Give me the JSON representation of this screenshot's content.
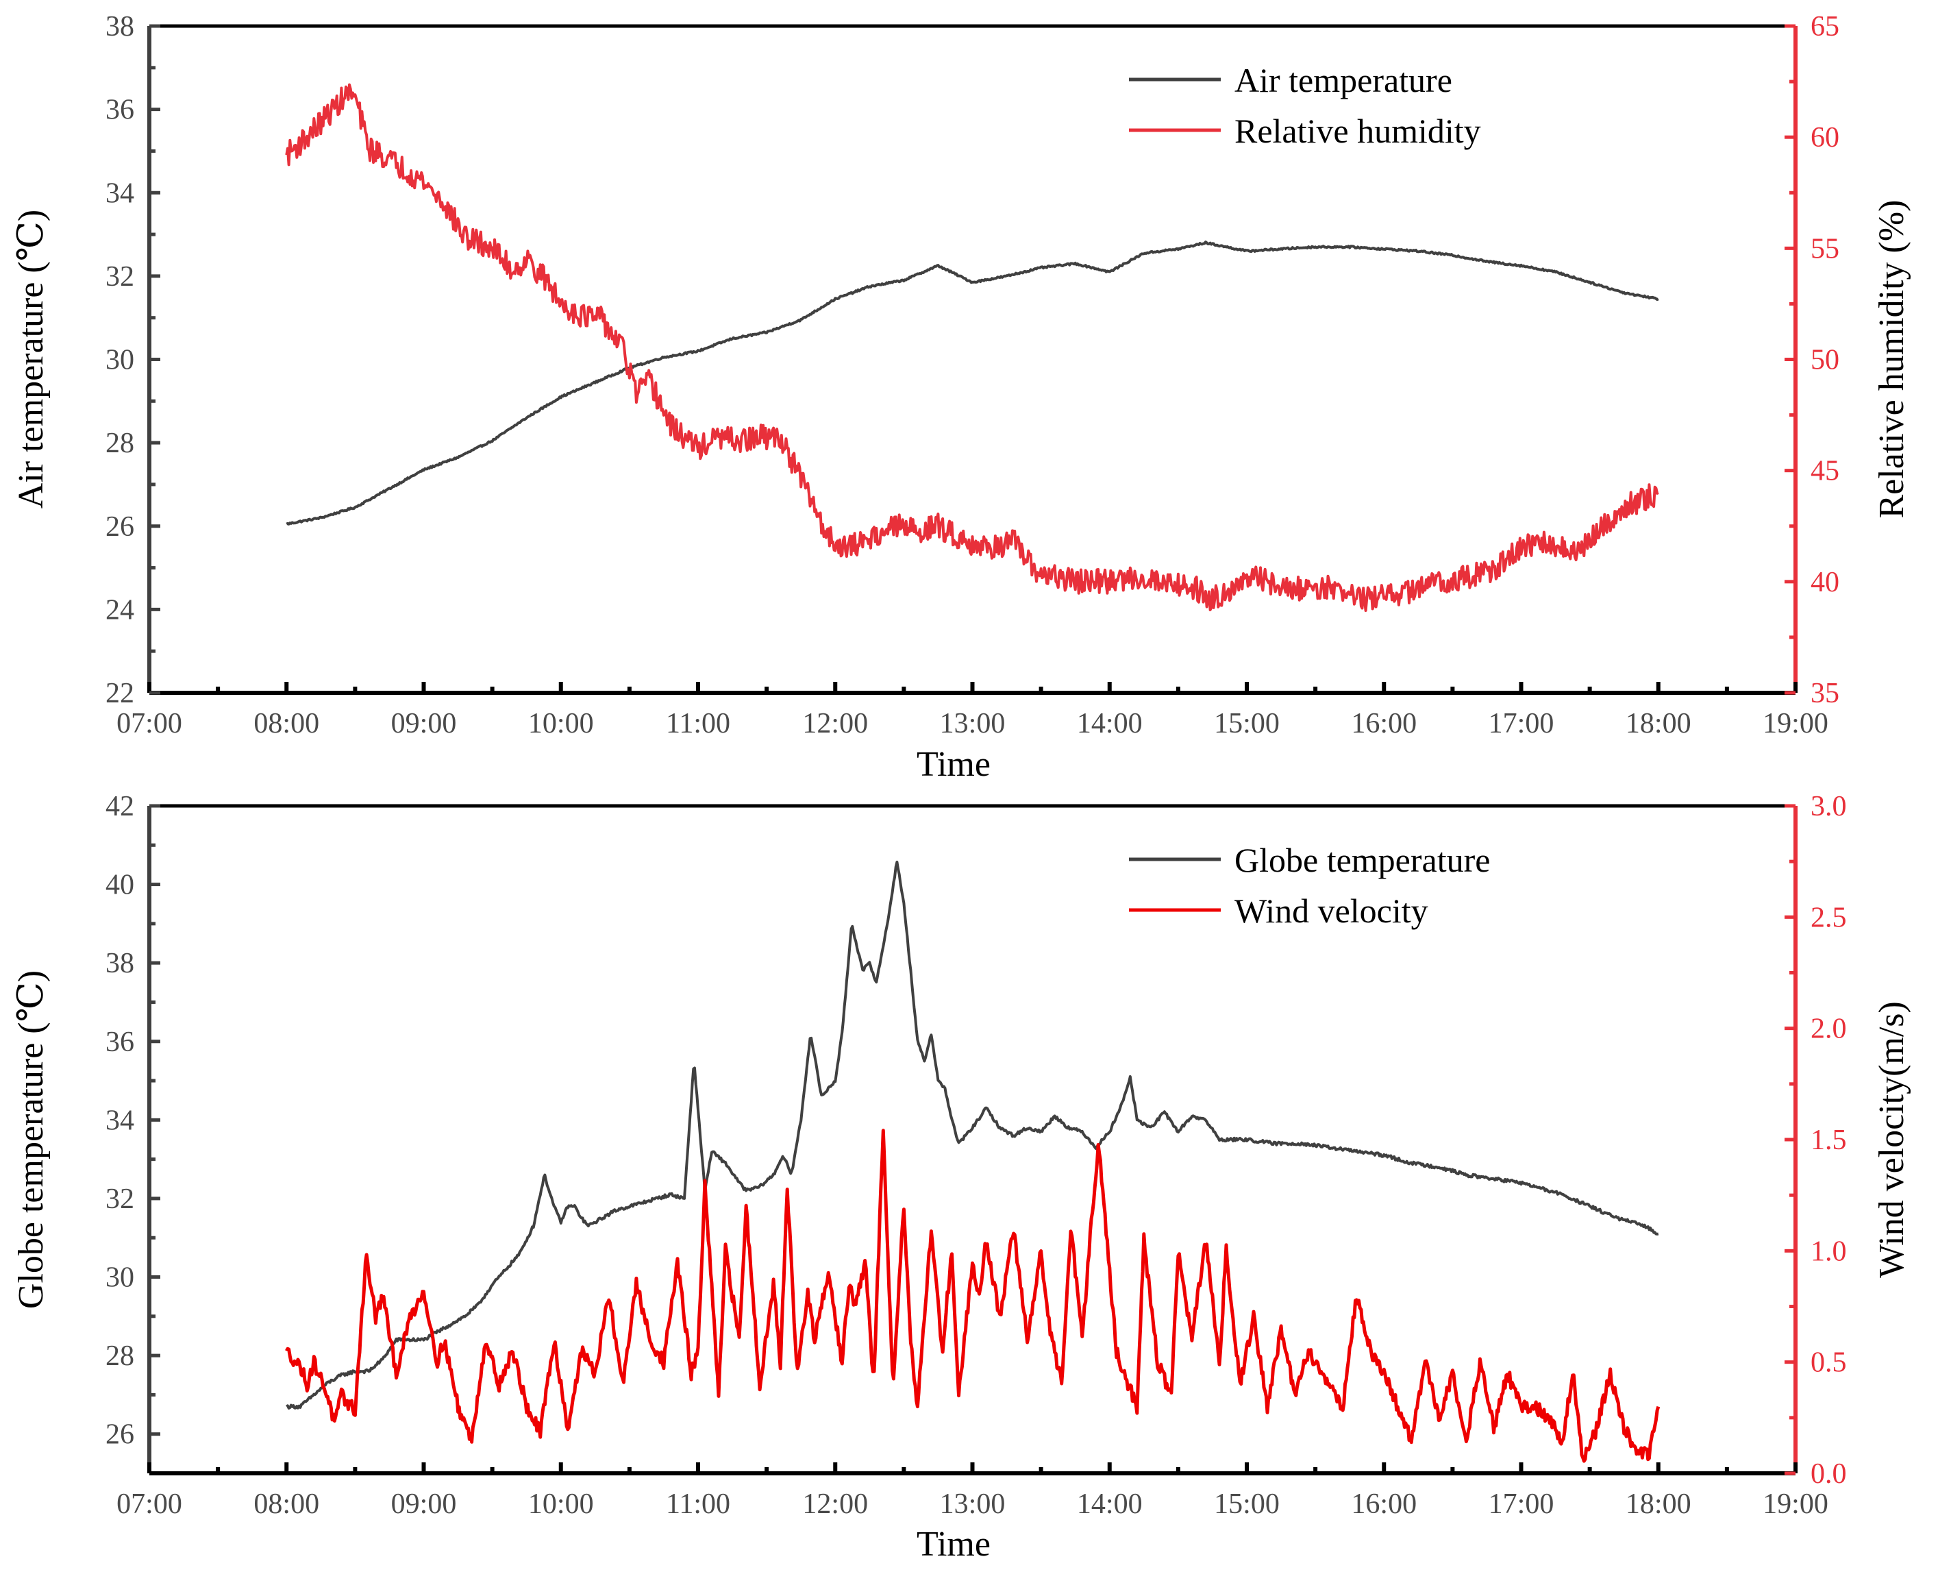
{
  "colors": {
    "primary": "#404040",
    "secondary": "#e8303a",
    "secondary_wind": "#ee0000",
    "axis": "#000000"
  },
  "chart_data": [
    {
      "id": "top",
      "type": "line",
      "xlabel": "Time",
      "ylabel": "Air temperature (℃)",
      "y2label": "Relative humidity (%)",
      "xlim": [
        7,
        19
      ],
      "xticks": [
        "07:00",
        "08:00",
        "09:00",
        "10:00",
        "11:00",
        "12:00",
        "13:00",
        "14:00",
        "15:00",
        "16:00",
        "17:00",
        "18:00",
        "19:00"
      ],
      "ylim": [
        22,
        38
      ],
      "yticks": [
        "22",
        "24",
        "26",
        "28",
        "30",
        "32",
        "34",
        "36",
        "38"
      ],
      "y2lim": [
        35,
        65
      ],
      "y2ticks": [
        "35",
        "40",
        "45",
        "50",
        "55",
        "60",
        "65"
      ],
      "legend_position": "top-right",
      "series": [
        {
          "name": "Air temperature",
          "axis": "left",
          "color": "#404040",
          "noise": 0.02,
          "x": [
            8.0,
            8.25,
            8.5,
            8.75,
            9.0,
            9.25,
            9.5,
            9.75,
            10.0,
            10.25,
            10.5,
            10.75,
            11.0,
            11.25,
            11.5,
            11.75,
            12.0,
            12.25,
            12.5,
            12.75,
            13.0,
            13.25,
            13.5,
            13.75,
            14.0,
            14.25,
            14.5,
            14.7,
            15.0,
            15.25,
            15.5,
            15.75,
            16.0,
            16.25,
            16.5,
            16.75,
            17.0,
            17.25,
            17.5,
            17.75,
            18.0
          ],
          "y": [
            26.05,
            26.2,
            26.45,
            26.9,
            27.35,
            27.65,
            28.05,
            28.6,
            29.1,
            29.45,
            29.8,
            30.05,
            30.2,
            30.5,
            30.65,
            30.95,
            31.45,
            31.75,
            31.9,
            32.25,
            31.85,
            32.0,
            32.2,
            32.3,
            32.1,
            32.55,
            32.65,
            32.8,
            32.6,
            32.65,
            32.7,
            32.7,
            32.65,
            32.6,
            32.5,
            32.35,
            32.25,
            32.1,
            31.85,
            31.6,
            31.45
          ]
        },
        {
          "name": "Relative humidity",
          "axis": "right",
          "color": "#e8303a",
          "noise": 0.55,
          "x": [
            8.0,
            8.15,
            8.3,
            8.45,
            8.5,
            8.6,
            8.75,
            9.0,
            9.15,
            9.3,
            9.5,
            9.65,
            9.75,
            9.9,
            10.0,
            10.15,
            10.3,
            10.45,
            10.55,
            10.65,
            10.8,
            11.0,
            11.15,
            11.3,
            11.45,
            11.6,
            11.8,
            11.95,
            12.1,
            12.25,
            12.45,
            12.6,
            12.75,
            12.9,
            13.1,
            13.3,
            13.45,
            13.6,
            13.8,
            14.0,
            14.2,
            14.4,
            14.6,
            14.75,
            14.9,
            15.1,
            15.3,
            15.5,
            15.7,
            15.85,
            16.0,
            16.2,
            16.4,
            16.6,
            16.8,
            17.0,
            17.2,
            17.4,
            17.6,
            17.8,
            18.0
          ],
          "y": [
            59.2,
            60.0,
            61.0,
            62.0,
            61.8,
            59.5,
            59.0,
            58.0,
            57.0,
            55.5,
            55.0,
            54.0,
            54.5,
            53.5,
            52.5,
            52.0,
            51.8,
            50.5,
            48.5,
            49.0,
            47.0,
            46.0,
            46.5,
            46.3,
            46.5,
            46.5,
            44.0,
            42.0,
            41.5,
            42.0,
            42.5,
            42.3,
            42.5,
            42.0,
            41.5,
            41.8,
            40.5,
            40.2,
            40.0,
            40.0,
            40.2,
            40.0,
            39.8,
            39.2,
            39.8,
            40.2,
            39.6,
            39.8,
            39.6,
            39.2,
            39.3,
            39.6,
            40.0,
            40.2,
            40.5,
            41.5,
            41.8,
            41.2,
            42.5,
            43.5,
            44.0
          ]
        }
      ]
    },
    {
      "id": "bottom",
      "type": "line",
      "xlabel": "Time",
      "ylabel": "Globe temperature (℃)",
      "y2label": "Wind velocity(m/s)",
      "xlim": [
        7,
        19
      ],
      "xticks": [
        "07:00",
        "08:00",
        "09:00",
        "10:00",
        "11:00",
        "12:00",
        "13:00",
        "14:00",
        "15:00",
        "16:00",
        "17:00",
        "18:00",
        "19:00"
      ],
      "ylim": [
        25,
        42
      ],
      "yticks": [
        "26",
        "28",
        "30",
        "32",
        "34",
        "36",
        "38",
        "40",
        "42"
      ],
      "y2lim": [
        0,
        3
      ],
      "y2ticks": [
        "0.0",
        "0.5",
        "1.0",
        "1.5",
        "2.0",
        "2.5",
        "3.0"
      ],
      "legend_position": "top-right",
      "series": [
        {
          "name": "Globe temperature",
          "axis": "left",
          "color": "#404040",
          "noise": 0.04,
          "x": [
            8.0,
            8.1,
            8.2,
            8.3,
            8.4,
            8.5,
            8.6,
            8.7,
            8.8,
            8.9,
            9.0,
            9.1,
            9.2,
            9.3,
            9.4,
            9.5,
            9.6,
            9.7,
            9.8,
            9.88,
            9.95,
            10.0,
            10.05,
            10.1,
            10.15,
            10.2,
            10.3,
            10.4,
            10.5,
            10.6,
            10.7,
            10.8,
            10.9,
            10.97,
            11.05,
            11.1,
            11.2,
            11.3,
            11.35,
            11.45,
            11.55,
            11.62,
            11.68,
            11.75,
            11.82,
            11.9,
            12.0,
            12.05,
            12.12,
            12.2,
            12.25,
            12.3,
            12.38,
            12.45,
            12.5,
            12.55,
            12.6,
            12.65,
            12.7,
            12.75,
            12.8,
            12.85,
            12.9,
            13.0,
            13.1,
            13.2,
            13.3,
            13.4,
            13.5,
            13.6,
            13.7,
            13.8,
            13.9,
            14.0,
            14.1,
            14.15,
            14.2,
            14.3,
            14.4,
            14.5,
            14.6,
            14.7,
            14.8,
            15.0,
            15.2,
            15.4,
            15.6,
            15.8,
            16.0,
            16.2,
            16.4,
            16.6,
            16.8,
            17.0,
            17.2,
            17.3,
            17.5,
            17.7,
            17.9,
            18.0
          ],
          "y": [
            26.7,
            26.7,
            27.0,
            27.3,
            27.5,
            27.6,
            27.6,
            27.9,
            28.4,
            28.4,
            28.4,
            28.6,
            28.8,
            29.0,
            29.3,
            29.8,
            30.2,
            30.6,
            31.3,
            32.6,
            31.8,
            31.4,
            31.8,
            31.8,
            31.5,
            31.3,
            31.5,
            31.7,
            31.8,
            31.9,
            32.0,
            32.1,
            32.0,
            35.5,
            32.2,
            33.2,
            32.9,
            32.4,
            32.2,
            32.3,
            32.6,
            33.1,
            32.6,
            34.0,
            36.2,
            34.6,
            35.0,
            36.2,
            39.0,
            37.8,
            38.0,
            37.5,
            39.0,
            40.6,
            39.5,
            37.8,
            36.0,
            35.5,
            36.2,
            35.0,
            34.8,
            34.0,
            33.4,
            33.8,
            34.3,
            33.8,
            33.6,
            33.8,
            33.7,
            34.1,
            33.8,
            33.7,
            33.3,
            33.7,
            34.5,
            35.1,
            34.0,
            33.8,
            34.2,
            33.7,
            34.1,
            34.0,
            33.5,
            33.5,
            33.4,
            33.4,
            33.3,
            33.2,
            33.1,
            32.9,
            32.8,
            32.6,
            32.5,
            32.4,
            32.2,
            32.1,
            31.8,
            31.5,
            31.3,
            31.1
          ]
        },
        {
          "name": "Wind velocity",
          "axis": "right",
          "color": "#ee0000",
          "noise": 0.03,
          "x": [
            8.0,
            8.1,
            8.15,
            8.2,
            8.3,
            8.35,
            8.4,
            8.5,
            8.58,
            8.65,
            8.7,
            8.8,
            8.9,
            9.0,
            9.1,
            9.15,
            9.25,
            9.35,
            9.45,
            9.55,
            9.65,
            9.75,
            9.85,
            9.95,
            10.05,
            10.15,
            10.25,
            10.35,
            10.45,
            10.55,
            10.65,
            10.75,
            10.85,
            10.95,
            11.0,
            11.05,
            11.15,
            11.2,
            11.3,
            11.35,
            11.45,
            11.55,
            11.6,
            11.65,
            11.72,
            11.8,
            11.85,
            11.95,
            12.05,
            12.1,
            12.15,
            12.22,
            12.28,
            12.35,
            12.42,
            12.5,
            12.55,
            12.6,
            12.7,
            12.78,
            12.85,
            12.9,
            13.0,
            13.05,
            13.1,
            13.2,
            13.3,
            13.4,
            13.5,
            13.55,
            13.65,
            13.72,
            13.8,
            13.85,
            13.92,
            14.0,
            14.05,
            14.1,
            14.2,
            14.25,
            14.35,
            14.45,
            14.5,
            14.6,
            14.7,
            14.8,
            14.85,
            14.95,
            15.05,
            15.15,
            15.25,
            15.35,
            15.45,
            15.55,
            15.7,
            15.8,
            15.9,
            16.0,
            16.1,
            16.2,
            16.3,
            16.4,
            16.5,
            16.6,
            16.7,
            16.8,
            16.9,
            17.0,
            17.1,
            17.2,
            17.3,
            17.38,
            17.45,
            17.55,
            17.65,
            17.75,
            17.85,
            17.93,
            18.0
          ],
          "y": [
            0.55,
            0.48,
            0.4,
            0.5,
            0.35,
            0.22,
            0.35,
            0.28,
            0.98,
            0.7,
            0.8,
            0.45,
            0.7,
            0.82,
            0.5,
            0.6,
            0.3,
            0.15,
            0.6,
            0.4,
            0.55,
            0.3,
            0.18,
            0.6,
            0.2,
            0.55,
            0.45,
            0.8,
            0.4,
            0.85,
            0.6,
            0.5,
            0.95,
            0.45,
            0.55,
            1.3,
            0.35,
            1.0,
            0.6,
            1.2,
            0.4,
            0.85,
            0.5,
            1.3,
            0.45,
            0.8,
            0.6,
            0.9,
            0.5,
            0.85,
            0.75,
            0.95,
            0.4,
            1.55,
            0.4,
            1.2,
            0.6,
            0.3,
            1.1,
            0.55,
            1.0,
            0.35,
            0.95,
            0.8,
            1.05,
            0.7,
            1.1,
            0.6,
            1.0,
            0.7,
            0.4,
            1.1,
            0.6,
            1.0,
            1.5,
            0.9,
            0.55,
            0.45,
            0.3,
            1.05,
            0.5,
            0.35,
            1.0,
            0.6,
            1.05,
            0.5,
            1.0,
            0.4,
            0.7,
            0.3,
            0.65,
            0.35,
            0.55,
            0.45,
            0.3,
            0.8,
            0.55,
            0.45,
            0.3,
            0.15,
            0.5,
            0.25,
            0.45,
            0.15,
            0.5,
            0.2,
            0.45,
            0.3,
            0.3,
            0.25,
            0.15,
            0.45,
            0.05,
            0.2,
            0.45,
            0.2,
            0.1,
            0.08,
            0.3
          ]
        }
      ]
    }
  ]
}
